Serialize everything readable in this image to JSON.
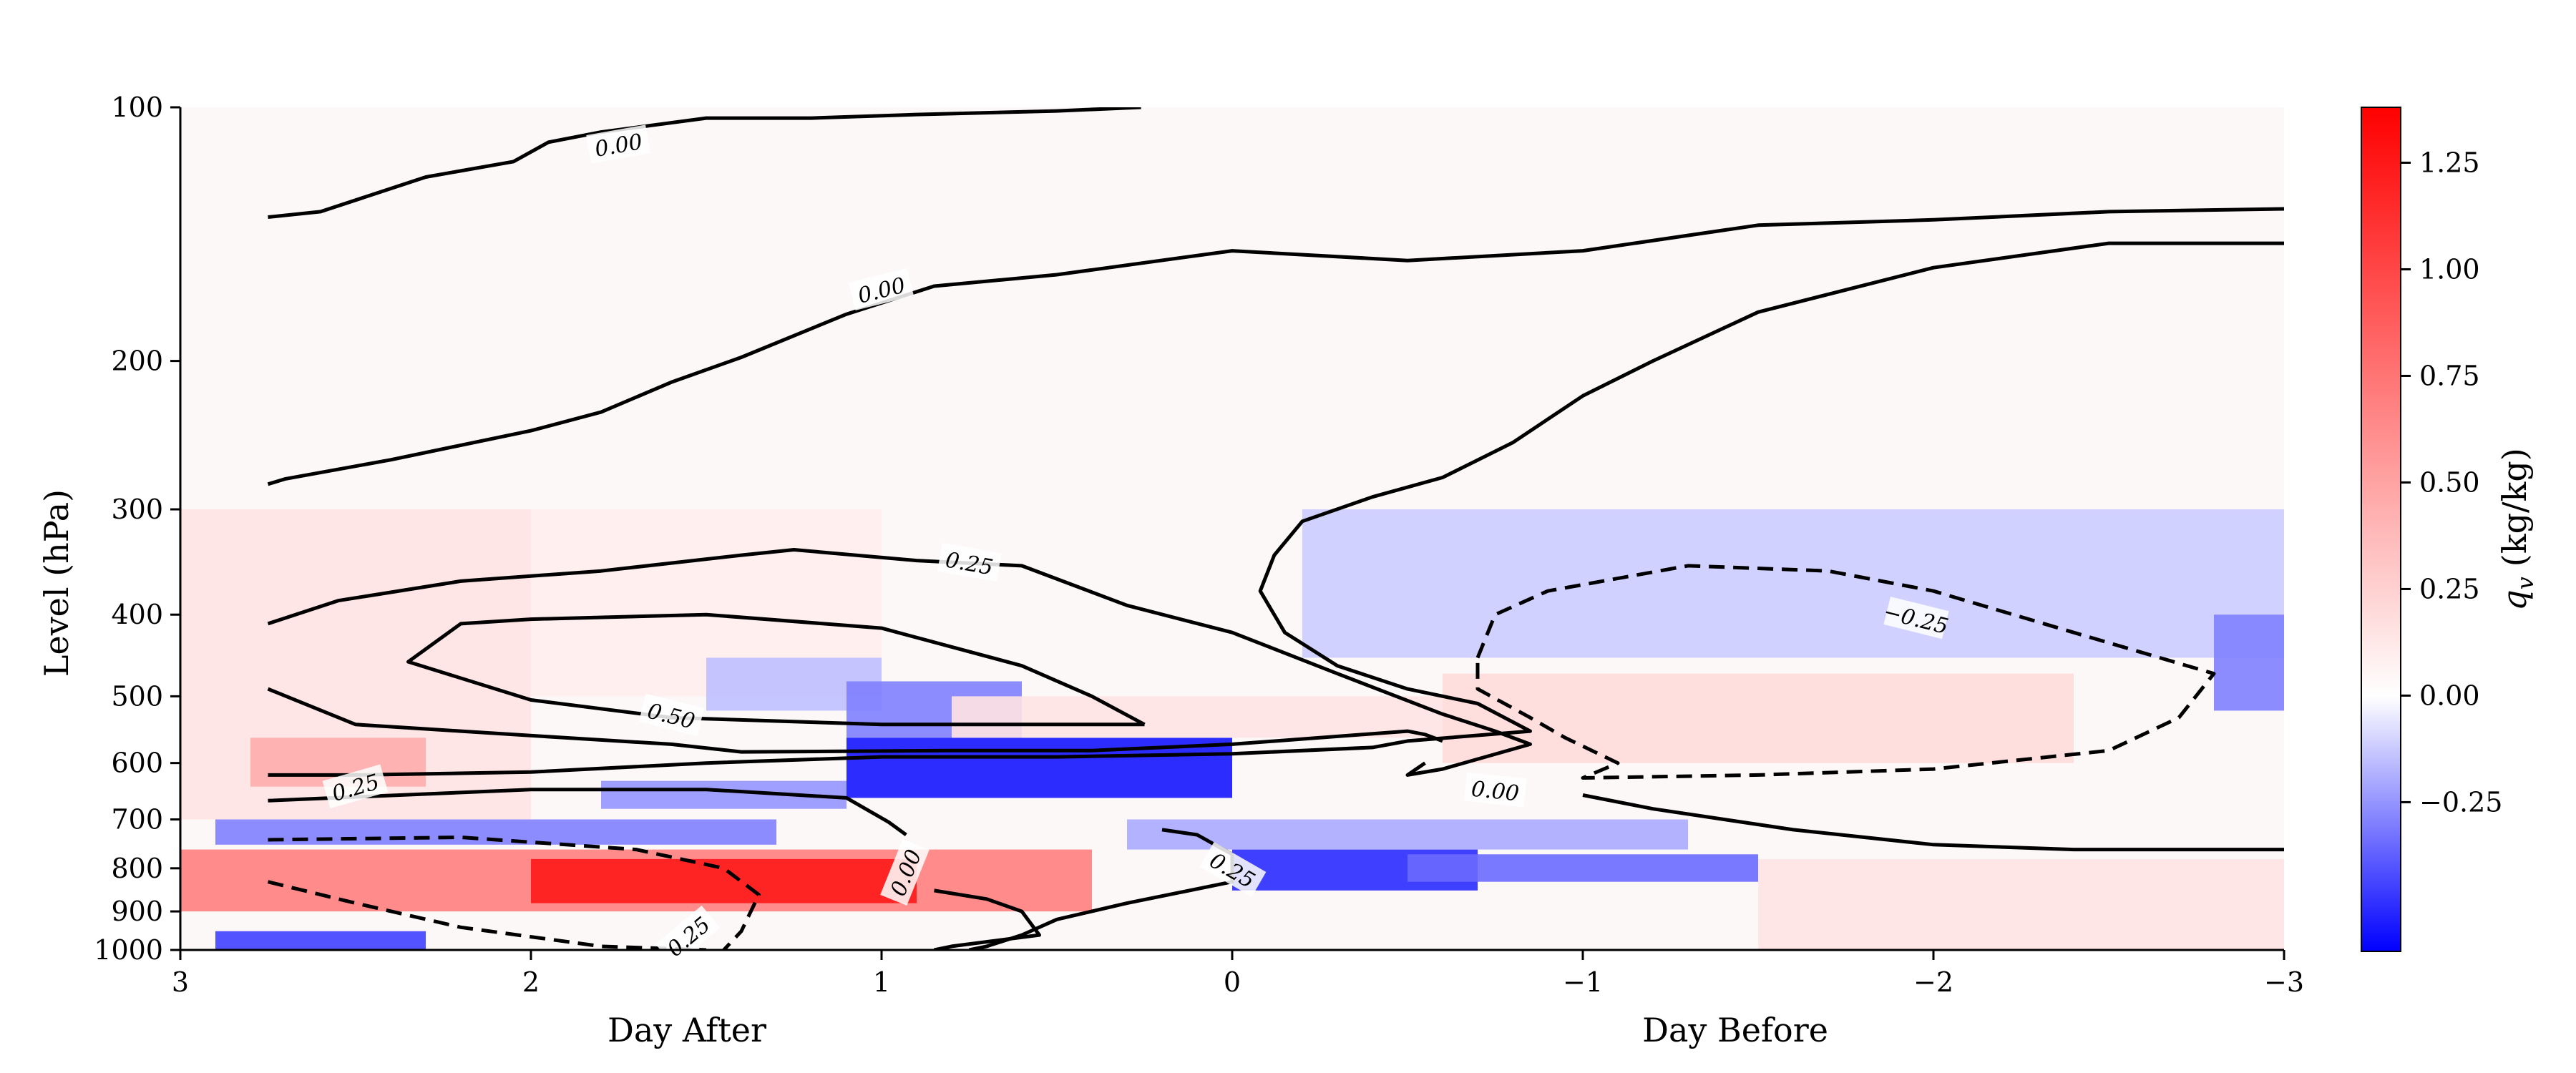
{
  "chart_data": {
    "type": "heatmap",
    "xlabel_left": "Day After",
    "xlabel_right": "Day Before",
    "ylabel": "Level (hPa)",
    "colorbar_label_var": "q",
    "colorbar_label_sub": "v",
    "colorbar_label_unit": "(kg/kg)",
    "x_ticks": [
      {
        "value": 3,
        "label": "3"
      },
      {
        "value": 2,
        "label": "2"
      },
      {
        "value": 1,
        "label": "1"
      },
      {
        "value": 0,
        "label": "0"
      },
      {
        "value": -1,
        "label": "−1"
      },
      {
        "value": -2,
        "label": "−2"
      },
      {
        "value": -3,
        "label": "−3"
      }
    ],
    "xlim": [
      3,
      -3
    ],
    "y_ticks": [
      {
        "value": 100,
        "label": "100"
      },
      {
        "value": 200,
        "label": "200"
      },
      {
        "value": 300,
        "label": "300"
      },
      {
        "value": 400,
        "label": "400"
      },
      {
        "value": 500,
        "label": "500"
      },
      {
        "value": 600,
        "label": "600"
      },
      {
        "value": 700,
        "label": "700"
      },
      {
        "value": 800,
        "label": "800"
      },
      {
        "value": 900,
        "label": "900"
      },
      {
        "value": 1000,
        "label": "1000"
      }
    ],
    "ylim": [
      1000,
      100
    ],
    "y_scale": "log",
    "colorbar_ticks": [
      {
        "value": 1.25,
        "label": "1.25"
      },
      {
        "value": 1.0,
        "label": "1.00"
      },
      {
        "value": 0.75,
        "label": "0.75"
      },
      {
        "value": 0.5,
        "label": "0.50"
      },
      {
        "value": 0.25,
        "label": "0.25"
      },
      {
        "value": 0.0,
        "label": "0.00"
      },
      {
        "value": -0.25,
        "label": "−0.25"
      }
    ],
    "colorbar_range": [
      -0.6,
      1.38
    ],
    "colormap": {
      "low": "#0000ff",
      "mid": "#ffffff",
      "high": "#ff0000"
    },
    "heat_cells": [
      {
        "x": [
          3,
          2
        ],
        "p": [
          300,
          700
        ],
        "v": 0.15
      },
      {
        "x": [
          2,
          1
        ],
        "p": [
          300,
          500
        ],
        "v": 0.1
      },
      {
        "x": [
          2.8,
          2.3
        ],
        "p": [
          560,
          640
        ],
        "v": 0.45
      },
      {
        "x": [
          1.5,
          1.0
        ],
        "p": [
          450,
          520
        ],
        "v": -0.15
      },
      {
        "x": [
          1.1,
          0.6
        ],
        "p": [
          480,
          560
        ],
        "v": -0.3
      },
      {
        "x": [
          1.1,
          0.0
        ],
        "p": [
          560,
          660
        ],
        "v": -0.55
      },
      {
        "x": [
          1.8,
          1.1
        ],
        "p": [
          630,
          680
        ],
        "v": -0.25
      },
      {
        "x": [
          2.9,
          1.3
        ],
        "p": [
          700,
          750
        ],
        "v": -0.3
      },
      {
        "x": [
          3,
          0.4
        ],
        "p": [
          760,
          900
        ],
        "v": 0.7
      },
      {
        "x": [
          2.0,
          0.9
        ],
        "p": [
          780,
          880
        ],
        "v": 1.25
      },
      {
        "x": [
          0.0,
          -0.7
        ],
        "p": [
          760,
          850
        ],
        "v": -0.5
      },
      {
        "x": [
          0.3,
          -1.3
        ],
        "p": [
          700,
          760
        ],
        "v": -0.2
      },
      {
        "x": [
          -0.5,
          -1.5
        ],
        "p": [
          770,
          830
        ],
        "v": -0.35
      },
      {
        "x": [
          -1.5,
          -3
        ],
        "p": [
          780,
          1000
        ],
        "v": 0.15
      },
      {
        "x": [
          -0.6,
          -2.4
        ],
        "p": [
          470,
          600
        ],
        "v": 0.2
      },
      {
        "x": [
          -0.2,
          -3
        ],
        "p": [
          300,
          450
        ],
        "v": -0.12
      },
      {
        "x": [
          -2.8,
          -3
        ],
        "p": [
          400,
          520
        ],
        "v": -0.3
      },
      {
        "x": [
          2.9,
          2.3
        ],
        "p": [
          950,
          1000
        ],
        "v": -0.45
      },
      {
        "x": [
          0.8,
          -0.6
        ],
        "p": [
          500,
          560
        ],
        "v": 0.15
      }
    ],
    "contours": [
      {
        "level": "0.00",
        "dashed": false,
        "points": [
          [
            2.75,
            135
          ],
          [
            2.6,
            133
          ],
          [
            2.3,
            121
          ],
          [
            2.05,
            116
          ],
          [
            1.95,
            110
          ],
          [
            1.8,
            107
          ],
          [
            1.5,
            103
          ],
          [
            1.2,
            103
          ],
          [
            0.9,
            102
          ],
          [
            0.5,
            101
          ],
          [
            0.26,
            100
          ]
        ]
      },
      {
        "level": "0.00",
        "dashed": false,
        "points": [
          [
            2.75,
            280
          ],
          [
            2.7,
            276
          ],
          [
            2.4,
            262
          ],
          [
            2.0,
            242
          ],
          [
            1.8,
            230
          ],
          [
            1.6,
            212
          ],
          [
            1.4,
            198
          ],
          [
            1.1,
            176
          ],
          [
            0.85,
            163
          ],
          [
            0.5,
            158
          ],
          [
            0.0,
            148
          ],
          [
            -0.5,
            152
          ],
          [
            -1.0,
            148
          ],
          [
            -1.5,
            138
          ],
          [
            -2.0,
            136
          ],
          [
            -2.5,
            133
          ],
          [
            -3.0,
            132
          ]
        ]
      },
      {
        "level": "0.00",
        "dashed": false,
        "points": [
          [
            -3.0,
            145
          ],
          [
            -2.5,
            145
          ],
          [
            -2.0,
            155
          ],
          [
            -1.5,
            175
          ],
          [
            -1.2,
            200
          ],
          [
            -1.0,
            220
          ],
          [
            -0.8,
            250
          ],
          [
            -0.6,
            275
          ],
          [
            -0.4,
            290
          ],
          [
            -0.2,
            310
          ],
          [
            -0.12,
            340
          ],
          [
            -0.08,
            375
          ],
          [
            -0.15,
            420
          ],
          [
            -0.3,
            460
          ],
          [
            -0.5,
            490
          ],
          [
            -0.7,
            510
          ],
          [
            -0.85,
            550
          ],
          [
            -0.5,
            565
          ],
          [
            -0.4,
            575
          ],
          [
            0.0,
            585
          ],
          [
            0.5,
            590
          ],
          [
            1.0,
            590
          ],
          [
            1.5,
            600
          ],
          [
            2.0,
            615
          ],
          [
            2.5,
            620
          ],
          [
            2.75,
            620
          ]
        ]
      },
      {
        "level": "0.25",
        "dashed": false,
        "points": [
          [
            2.75,
            410
          ],
          [
            2.55,
            385
          ],
          [
            2.2,
            365
          ],
          [
            1.8,
            355
          ],
          [
            1.4,
            340
          ],
          [
            1.25,
            335
          ],
          [
            0.9,
            345
          ],
          [
            0.6,
            350
          ],
          [
            0.3,
            390
          ],
          [
            0.0,
            420
          ],
          [
            -0.3,
            470
          ],
          [
            -0.6,
            525
          ],
          [
            -0.75,
            550
          ],
          [
            -0.85,
            570
          ],
          [
            -0.6,
            610
          ],
          [
            -0.5,
            620
          ],
          [
            -0.55,
            600
          ]
        ]
      },
      {
        "level": "0.50",
        "dashed": false,
        "points": [
          [
            0.25,
            540
          ],
          [
            0.4,
            500
          ],
          [
            0.6,
            460
          ],
          [
            1.0,
            415
          ],
          [
            1.5,
            400
          ],
          [
            2.0,
            405
          ],
          [
            2.2,
            410
          ],
          [
            2.35,
            455
          ],
          [
            2.0,
            505
          ],
          [
            1.6,
            530
          ],
          [
            1.0,
            540
          ],
          [
            0.6,
            540
          ],
          [
            0.25,
            540
          ]
        ]
      },
      {
        "level": "0.25",
        "dashed": false,
        "points": [
          [
            2.75,
            490
          ],
          [
            2.5,
            540
          ],
          [
            2.2,
            550
          ],
          [
            1.9,
            560
          ],
          [
            1.6,
            570
          ],
          [
            1.4,
            582
          ],
          [
            0.8,
            580
          ],
          [
            0.4,
            580
          ],
          [
            0.0,
            570
          ],
          [
            -0.5,
            550
          ],
          [
            -0.55,
            555
          ],
          [
            -0.6,
            565
          ]
        ]
      },
      {
        "level": "0.25",
        "dashed": false,
        "points": [
          [
            2.75,
            665
          ],
          [
            2.0,
            645
          ],
          [
            1.5,
            645
          ],
          [
            1.1,
            660
          ],
          [
            0.98,
            705
          ],
          [
            0.93,
            730
          ]
        ]
      },
      {
        "level": "0.00",
        "dashed": false,
        "points": [
          [
            0.85,
            850
          ],
          [
            0.7,
            870
          ],
          [
            0.6,
            900
          ],
          [
            0.55,
            960
          ],
          [
            0.8,
            990
          ],
          [
            0.85,
            1000
          ]
        ]
      },
      {
        "level": "0.25",
        "dashed": false,
        "points": [
          [
            0.2,
            720
          ],
          [
            0.1,
            730
          ],
          [
            0.0,
            770
          ],
          [
            0.0,
            830
          ],
          [
            0.3,
            880
          ],
          [
            0.5,
            920
          ],
          [
            0.6,
            960
          ],
          [
            0.7,
            990
          ],
          [
            0.75,
            1000
          ]
        ]
      },
      {
        "level": "0.00",
        "dashed": false,
        "points": [
          [
            -1.0,
            655
          ],
          [
            -1.2,
            680
          ],
          [
            -1.6,
            720
          ],
          [
            -2.0,
            750
          ],
          [
            -2.4,
            760
          ],
          [
            -3.0,
            760
          ]
        ]
      },
      {
        "level": "-0.25",
        "dashed": true,
        "points": [
          [
            -0.7,
            450
          ],
          [
            -0.75,
            400
          ],
          [
            -0.9,
            375
          ],
          [
            -1.3,
            350
          ],
          [
            -1.7,
            355
          ],
          [
            -2.0,
            375
          ],
          [
            -2.4,
            420
          ],
          [
            -2.8,
            470
          ],
          [
            -2.7,
            530
          ],
          [
            -2.5,
            580
          ],
          [
            -2.0,
            610
          ],
          [
            -1.5,
            620
          ],
          [
            -1.0,
            625
          ],
          [
            -1.1,
            600
          ],
          [
            -0.95,
            560
          ],
          [
            -0.85,
            530
          ],
          [
            -0.7,
            490
          ],
          [
            -0.7,
            450
          ]
        ]
      },
      {
        "level": "-0.25",
        "dashed": true,
        "points": [
          [
            2.75,
            830
          ],
          [
            2.5,
            880
          ],
          [
            2.2,
            940
          ],
          [
            1.8,
            990
          ],
          [
            1.5,
            1000
          ]
        ]
      },
      {
        "level": "-0.25",
        "dashed": true,
        "points": [
          [
            2.75,
            740
          ],
          [
            2.2,
            735
          ],
          [
            1.7,
            760
          ],
          [
            1.45,
            800
          ],
          [
            1.35,
            860
          ],
          [
            1.4,
            950
          ],
          [
            1.45,
            1000
          ]
        ]
      }
    ],
    "contour_labels": [
      {
        "text": "0.00",
        "x": 1.75,
        "p": 111,
        "angle": -10
      },
      {
        "text": "0.00",
        "x": 1.0,
        "p": 165,
        "angle": -14
      },
      {
        "text": "0.25",
        "x": 0.75,
        "p": 348,
        "angle": 10
      },
      {
        "text": "0.50",
        "x": 1.6,
        "p": 528,
        "angle": 14
      },
      {
        "text": "0.25",
        "x": 2.5,
        "p": 642,
        "angle": -16
      },
      {
        "text": "0.00",
        "x": 0.93,
        "p": 810,
        "angle": -68
      },
      {
        "text": "0.25",
        "x": 0.0,
        "p": 805,
        "angle": 30
      },
      {
        "text": "0.00",
        "x": -0.75,
        "p": 648,
        "angle": 6
      },
      {
        "text": "−0.25",
        "x": -1.95,
        "p": 405,
        "angle": 14
      },
      {
        "text": "0.25",
        "x": 1.55,
        "p": 965,
        "angle": -40
      }
    ]
  }
}
